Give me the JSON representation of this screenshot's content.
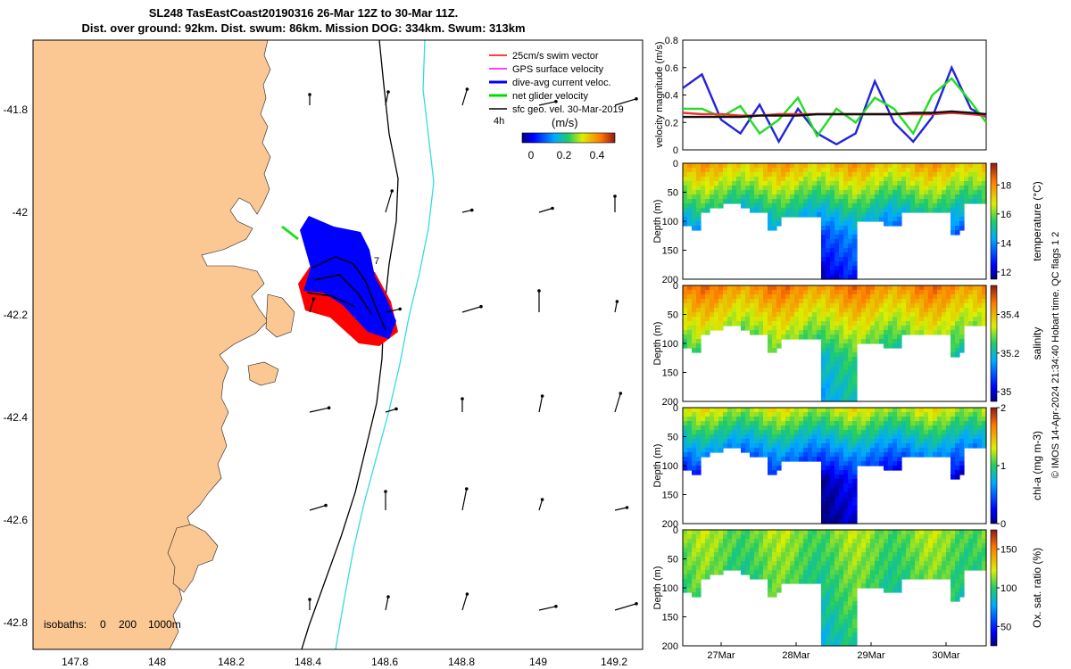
{
  "title": {
    "line1": "SL248 TasEastCoast20190316 26-Mar 12Z to 30-Mar 11Z.",
    "line2": "Dist. over ground: 92km. Dist. swum: 86km. Mission DOG: 334km. Swum: 313km"
  },
  "map": {
    "lon_ticks": [
      "147.8",
      "148",
      "148.2",
      "148.4",
      "148.6",
      "148.8",
      "149",
      "149.2"
    ],
    "lat_ticks": [
      "-41.8",
      "-42",
      "-42.2",
      "-42.4",
      "-42.6",
      "-42.8"
    ],
    "legend": [
      {
        "label": "25cm/s swim vector",
        "color": "#ff0000"
      },
      {
        "label": "GPS surface velocity",
        "color": "#ff00ff"
      },
      {
        "label": "dive-avg current veloc.",
        "color": "#0000ff"
      },
      {
        "label": "net glider velocity",
        "color": "#00dd00"
      },
      {
        "label": "sfc geo. vel. 30-Mar-2019",
        "color": "#000000"
      }
    ],
    "colorbar": {
      "unit": "(m/s)",
      "ticks": [
        "0",
        "0.2",
        "0.4"
      ],
      "time_label": "4h"
    },
    "isobaths": {
      "prefix": "isobaths:",
      "values": [
        "0",
        "200",
        "1000m"
      ]
    },
    "annotation": "7",
    "colors": {
      "land": "#fbc792",
      "ocean": "#ffffff",
      "isobath200": "#000000",
      "isobath1000": "#33dddd"
    }
  },
  "chart_data": [
    {
      "type": "line",
      "title": "",
      "xlabel": "",
      "ylabel": "velocity magnitude (m/s)",
      "ylim": [
        0,
        0.8
      ],
      "yticks": [
        "0",
        "0.2",
        "0.4",
        "0.6",
        "0.8"
      ],
      "x": [
        26.5,
        26.75,
        27.0,
        27.25,
        27.5,
        27.75,
        28.0,
        28.25,
        28.5,
        28.75,
        29.0,
        29.25,
        29.5,
        29.75,
        30.0,
        30.25,
        30.45
      ],
      "series": [
        {
          "name": "dive-avg current veloc.",
          "color": "#2222dd",
          "values": [
            0.45,
            0.55,
            0.22,
            0.12,
            0.33,
            0.06,
            0.3,
            0.12,
            0.04,
            0.12,
            0.5,
            0.2,
            0.06,
            0.24,
            0.6,
            0.3,
            0.24
          ]
        },
        {
          "name": "net glider velocity",
          "color": "#22dd22",
          "values": [
            0.3,
            0.3,
            0.24,
            0.32,
            0.12,
            0.22,
            0.38,
            0.1,
            0.3,
            0.2,
            0.38,
            0.3,
            0.12,
            0.4,
            0.52,
            0.35,
            0.2
          ]
        },
        {
          "name": "swim speed",
          "color": "#ee3333",
          "values": [
            0.27,
            0.26,
            0.26,
            0.25,
            0.25,
            0.26,
            0.26,
            0.26,
            0.26,
            0.26,
            0.26,
            0.26,
            0.26,
            0.26,
            0.27,
            0.26,
            0.25
          ]
        },
        {
          "name": "surface geostrophic",
          "color": "#111111",
          "values": [
            0.24,
            0.24,
            0.24,
            0.24,
            0.25,
            0.25,
            0.25,
            0.26,
            0.26,
            0.26,
            0.26,
            0.26,
            0.27,
            0.27,
            0.28,
            0.27,
            0.26
          ]
        }
      ]
    },
    {
      "type": "heatmap",
      "variable": "temperature",
      "colorbar_label": "temperature (°C)",
      "colorbar_ticks": [
        "12",
        "14",
        "16",
        "18"
      ],
      "colorbar_range": [
        11.5,
        19.5
      ],
      "ylabel": "Depth (m)",
      "yticks": [
        "0",
        "50",
        "100",
        "150",
        "200"
      ],
      "surface_value": 17.6,
      "deep_value": 13.5,
      "bottom_value": 12.3,
      "xticks": [
        "27Mar",
        "28Mar",
        "29Mar",
        "30Mar"
      ]
    },
    {
      "type": "heatmap",
      "variable": "salinity",
      "colorbar_label": "salinity",
      "colorbar_ticks": [
        "35",
        "35.2",
        "35.4"
      ],
      "colorbar_range": [
        34.95,
        35.55
      ],
      "ylabel": "Depth (m)",
      "yticks": [
        "0",
        "50",
        "100",
        "150",
        "200"
      ],
      "surface_value": 35.45,
      "deep_value": 35.22,
      "bottom_value": 35.18,
      "xticks": [
        "27Mar",
        "28Mar",
        "29Mar",
        "30Mar"
      ]
    },
    {
      "type": "heatmap",
      "variable": "chl-a",
      "colorbar_label": "chl-a (mg m-3)",
      "colorbar_ticks": [
        "0",
        "1",
        "2"
      ],
      "colorbar_range": [
        0,
        2
      ],
      "ylabel": "Depth (m)",
      "yticks": [
        "0",
        "50",
        "100",
        "150",
        "200"
      ],
      "surface_value": 1.3,
      "deep_value": 0.15,
      "bottom_value": 0.05,
      "xticks": [
        "27Mar",
        "28Mar",
        "29Mar",
        "30Mar"
      ]
    },
    {
      "type": "heatmap",
      "variable": "oxygen",
      "colorbar_label": "Ox. sat. ratio (%)",
      "colorbar_ticks": [
        "50",
        "100",
        "150"
      ],
      "colorbar_range": [
        25,
        175
      ],
      "ylabel": "Depth (m)",
      "yticks": [
        "0",
        "50",
        "100",
        "150",
        "200"
      ],
      "surface_value": 112,
      "deep_value": 98,
      "bottom_value": 88,
      "xticks": [
        "27Mar",
        "28Mar",
        "29Mar",
        "30Mar"
      ]
    }
  ],
  "footer": {
    "credit": "© IMOS 14-Apr-2024 21:34:40 Hobart time. QC flags 1  2"
  }
}
